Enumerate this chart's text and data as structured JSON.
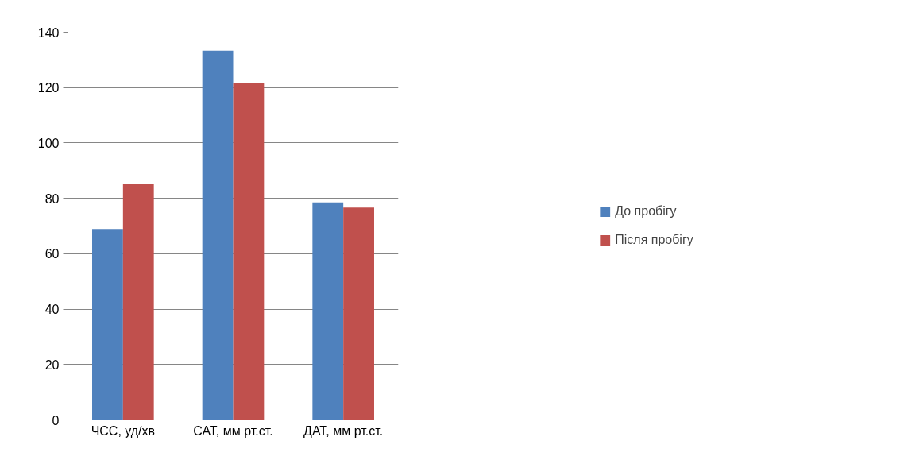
{
  "chart_data": {
    "type": "bar",
    "categories": [
      "ЧСС, уд/хв",
      "САТ, мм рт.ст.",
      "ДАТ, мм рт.ст."
    ],
    "series": [
      {
        "name": "До пробігу",
        "color": "#4f81bd",
        "values": [
          68.9,
          133.3,
          78.5
        ]
      },
      {
        "name": "Після пробігу",
        "color": "#c0504d",
        "values": [
          85.3,
          121.6,
          76.7
        ]
      }
    ],
    "ylim": [
      0,
      140
    ],
    "yticks": [
      0,
      20,
      40,
      60,
      80,
      100,
      120,
      140
    ],
    "grid": "y",
    "legend": "right"
  }
}
